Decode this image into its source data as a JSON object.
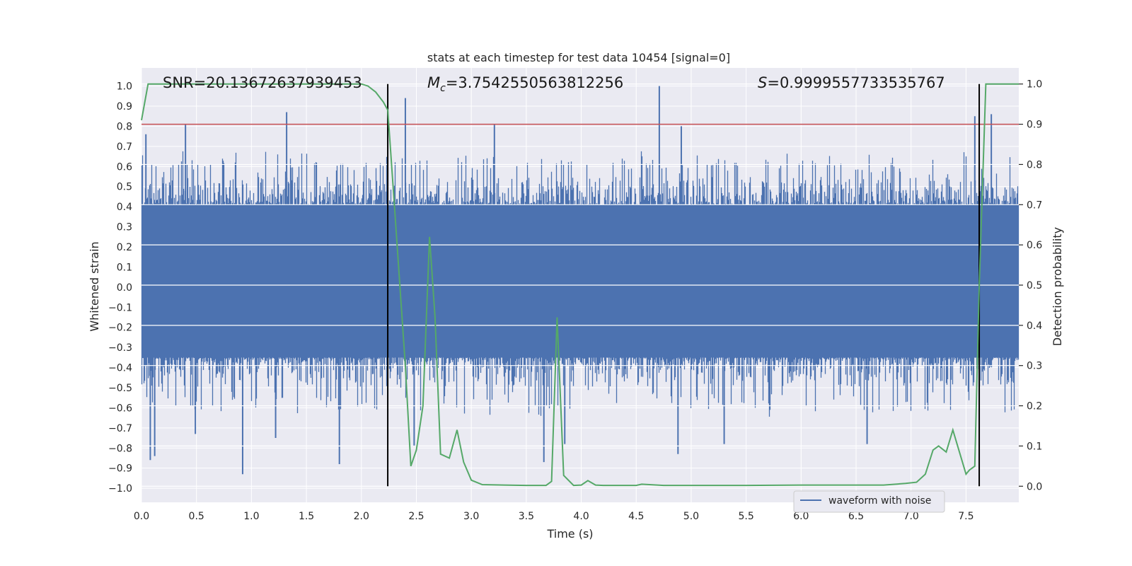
{
  "chart_data": {
    "type": "line",
    "title": "stats at each timestep for test data 10454 [signal=0]",
    "xlabel": "Time (s)",
    "ylabel": "Whitened strain",
    "y2label": "Detection probability",
    "xlim": [
      0.0,
      7.98
    ],
    "ylim": [
      -1.07,
      1.09
    ],
    "y2lim": [
      -0.04,
      1.04
    ],
    "xticks": [
      0.0,
      0.5,
      1.0,
      1.5,
      2.0,
      2.5,
      3.0,
      3.5,
      4.0,
      4.5,
      5.0,
      5.5,
      6.0,
      6.5,
      7.0,
      7.5
    ],
    "xtick_labels": [
      "0.0",
      "0.5",
      "1.0",
      "1.5",
      "2.0",
      "2.5",
      "3.0",
      "3.5",
      "4.0",
      "4.5",
      "5.0",
      "5.5",
      "6.0",
      "6.5",
      "7.0",
      "7.5"
    ],
    "yticks": [
      1.0,
      0.9,
      0.8,
      0.7,
      0.6,
      0.5,
      0.4,
      0.3,
      0.2,
      0.1,
      0.0,
      -0.1,
      -0.2,
      -0.3,
      -0.4,
      -0.5,
      -0.6,
      -0.7,
      -0.8,
      -0.9,
      -1.0
    ],
    "ytick_labels": [
      "1.0",
      "0.9",
      "0.8",
      "0.7",
      "0.6",
      "0.5",
      "0.4",
      "0.3",
      "0.2",
      "0.1",
      "0.0",
      "−0.1",
      "−0.2",
      "−0.3",
      "−0.4",
      "−0.5",
      "−0.6",
      "−0.7",
      "−0.8",
      "−0.9",
      "−1.0"
    ],
    "y2ticks": [
      1.0,
      0.9,
      0.8,
      0.7,
      0.6,
      0.5,
      0.4,
      0.3,
      0.2,
      0.1,
      0.0
    ],
    "y2tick_labels": [
      "1.0",
      "0.9",
      "0.8",
      "0.7",
      "0.6",
      "0.5",
      "0.4",
      "0.3",
      "0.2",
      "0.1",
      "0.0"
    ],
    "grid": true,
    "legend_position": "lower-right",
    "annotations": {
      "snr": "SNR=20.13672637939453",
      "mc_symbol": "M",
      "mc_sub": "c",
      "mc_value": "=3.7542550563812256",
      "s_symbol": "S",
      "s_value": "=0.9999557733535767"
    },
    "threshold_line": {
      "axis": "secondary",
      "y": 0.9
    },
    "vertical_lines": [
      2.24,
      7.62
    ],
    "series": [
      {
        "name": "waveform with noise",
        "axis": "primary",
        "type": "noise_band",
        "core_range": [
          -0.35,
          0.41
        ],
        "typical_peak": 0.6,
        "spikes": [
          {
            "x": 0.04,
            "y": 0.76
          },
          {
            "x": 0.08,
            "y": -0.86
          },
          {
            "x": 0.12,
            "y": -0.84
          },
          {
            "x": 0.4,
            "y": 0.81
          },
          {
            "x": 0.49,
            "y": -0.73
          },
          {
            "x": 0.92,
            "y": -0.93
          },
          {
            "x": 1.32,
            "y": 0.87
          },
          {
            "x": 1.22,
            "y": -0.75
          },
          {
            "x": 1.8,
            "y": -0.88
          },
          {
            "x": 2.4,
            "y": 0.94
          },
          {
            "x": 2.48,
            "y": -0.79
          },
          {
            "x": 3.21,
            "y": 0.81
          },
          {
            "x": 3.66,
            "y": -0.87
          },
          {
            "x": 4.71,
            "y": 1.0
          },
          {
            "x": 4.88,
            "y": -0.83
          },
          {
            "x": 4.91,
            "y": 0.8
          },
          {
            "x": 7.58,
            "y": 0.85
          },
          {
            "x": 7.73,
            "y": 0.86
          },
          {
            "x": 3.85,
            "y": -0.78
          },
          {
            "x": 6.6,
            "y": -0.78
          },
          {
            "x": 5.3,
            "y": -0.78
          }
        ]
      },
      {
        "name": "",
        "axis": "secondary",
        "color": "#55a868",
        "x": [
          0.0,
          0.06,
          0.12,
          0.5,
          1.0,
          1.5,
          1.9,
          2.0,
          2.06,
          2.13,
          2.2,
          2.24,
          2.3,
          2.4,
          2.45,
          2.5,
          2.56,
          2.62,
          2.67,
          2.72,
          2.8,
          2.87,
          2.93,
          3.0,
          3.1,
          3.3,
          3.5,
          3.68,
          3.73,
          3.78,
          3.84,
          3.93,
          4.0,
          4.06,
          4.13,
          4.2,
          4.5,
          4.55,
          4.75,
          5.0,
          5.5,
          6.0,
          6.5,
          6.75,
          6.95,
          7.05,
          7.13,
          7.2,
          7.25,
          7.32,
          7.38,
          7.5,
          7.53,
          7.58,
          7.62,
          7.68,
          7.72,
          7.8,
          7.98
        ],
        "y": [
          0.91,
          1.0,
          1.0,
          1.0,
          1.0,
          1.0,
          1.0,
          1.0,
          0.995,
          0.98,
          0.955,
          0.935,
          0.7,
          0.3,
          0.05,
          0.09,
          0.2,
          0.62,
          0.42,
          0.08,
          0.07,
          0.14,
          0.06,
          0.015,
          0.004,
          0.003,
          0.002,
          0.002,
          0.012,
          0.42,
          0.027,
          0.002,
          0.003,
          0.014,
          0.003,
          0.002,
          0.002,
          0.005,
          0.002,
          0.002,
          0.002,
          0.003,
          0.003,
          0.003,
          0.007,
          0.01,
          0.03,
          0.09,
          0.1,
          0.085,
          0.14,
          0.03,
          0.04,
          0.05,
          0.5,
          1.0,
          1.0,
          1.0,
          1.0
        ]
      }
    ]
  }
}
